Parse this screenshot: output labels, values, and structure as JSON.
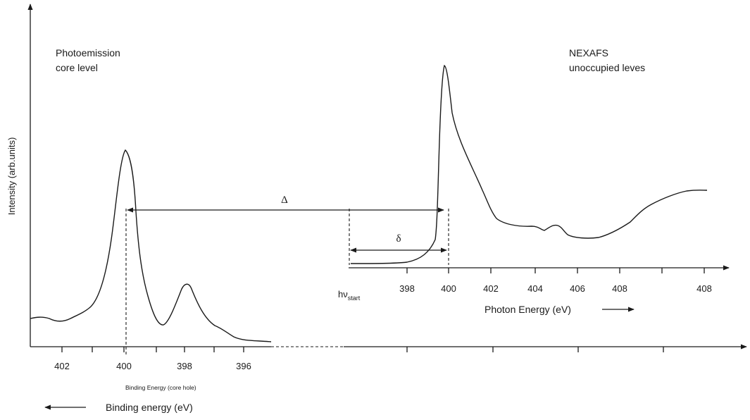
{
  "labels": {
    "y_axis": "Intensity (arb.units)",
    "photoemission_title_line1": "Photoemission",
    "photoemission_title_line2": "core level",
    "nexafs_title_line1": "NEXAFS",
    "nexafs_title_line2": "unoccupied leves",
    "delta_upper": "Δ",
    "delta_lower": "δ",
    "hv_main": "hν",
    "hv_sub": "start",
    "binding_energy_core_hole": "Binding Energy (core hole)",
    "binding_energy_axis": "Binding energy (eV)",
    "photon_energy_axis": "Photon Energy (eV)"
  },
  "binding_ticks": [
    "402",
    "400",
    "398",
    "396"
  ],
  "photon_ticks": [
    "398",
    "400",
    "402",
    "404",
    "406",
    "408"
  ],
  "colors": {
    "ink": "#1a1a1a",
    "background": "#ffffff"
  }
}
